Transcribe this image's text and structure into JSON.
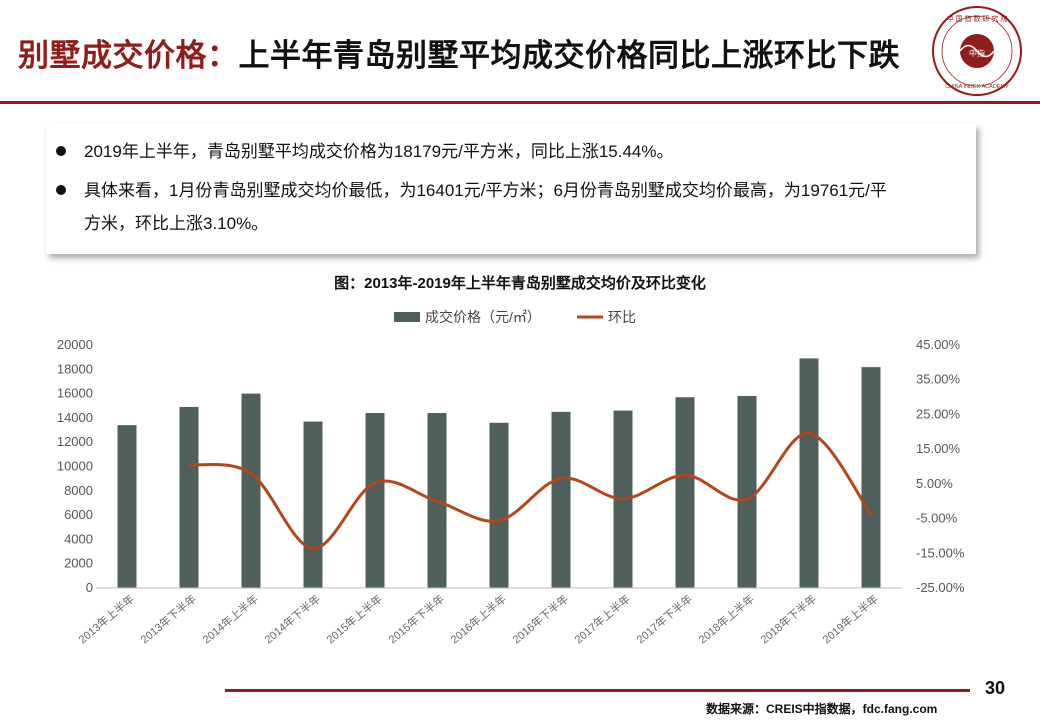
{
  "slide": {
    "title_prefix": "别墅成交价格：",
    "title_main": "上半年青岛别墅平均成交价格同比上涨环比下跌",
    "page_number": "30",
    "source": "数据来源：CREIS中指数据，fdc.fang.com",
    "accent_color": "#8f1d1a",
    "logo": {
      "top_text": "中 国 指 数 研 究 院",
      "bottom_text": "CHINA INDEX ACADEMY",
      "center_text": "中指"
    }
  },
  "summary": {
    "bullet1": "2019年上半年，青岛别墅平均成交价格为18179元/平方米，同比上涨15.44%。",
    "bullet2_line1": "具体来看，1月份青岛别墅成交均价最低，为16401元/平方米；6月份青岛别墅成交均价最高，为19761元/平",
    "bullet2_line2": "方米，环比上涨3.10%。"
  },
  "chart_data": {
    "type": "bar",
    "title": "图：2013年-2019年上半年青岛别墅成交均价及环比变化",
    "categories": [
      "2013年上半年",
      "2013年下半年",
      "2014年上半年",
      "2014年下半年",
      "2015年上半年",
      "2015年下半年",
      "2016年上半年",
      "2016年下半年",
      "2017年上半年",
      "2017年下半年",
      "2018年上半年",
      "2018年下半年",
      "2019年上半年"
    ],
    "series": [
      {
        "name": "成交价格（元/㎡）",
        "type": "bar",
        "axis": "left",
        "color": "#4f5f5c",
        "values": [
          13400,
          14900,
          16000,
          13700,
          14400,
          14400,
          13600,
          14500,
          14600,
          15700,
          15800,
          18900,
          18179
        ]
      },
      {
        "name": "环比",
        "type": "line",
        "axis": "right",
        "color": "#b5451b",
        "values": [
          null,
          10.5,
          8.0,
          -13.6,
          5.3,
          0.0,
          -5.6,
          6.6,
          0.7,
          7.5,
          0.6,
          19.6,
          -3.8
        ]
      }
    ],
    "y_left": {
      "min": 0,
      "max": 20000,
      "step": 2000,
      "ticks": [
        "0",
        "2000",
        "4000",
        "6000",
        "8000",
        "10000",
        "12000",
        "14000",
        "16000",
        "18000",
        "20000"
      ]
    },
    "y_right": {
      "min": -25,
      "max": 45,
      "step": 10,
      "ticks": [
        "-25.00%",
        "-15.00%",
        "-5.00%",
        "5.00%",
        "15.00%",
        "25.00%",
        "35.00%",
        "45.00%"
      ]
    },
    "legend_position": "top",
    "grid": false
  }
}
